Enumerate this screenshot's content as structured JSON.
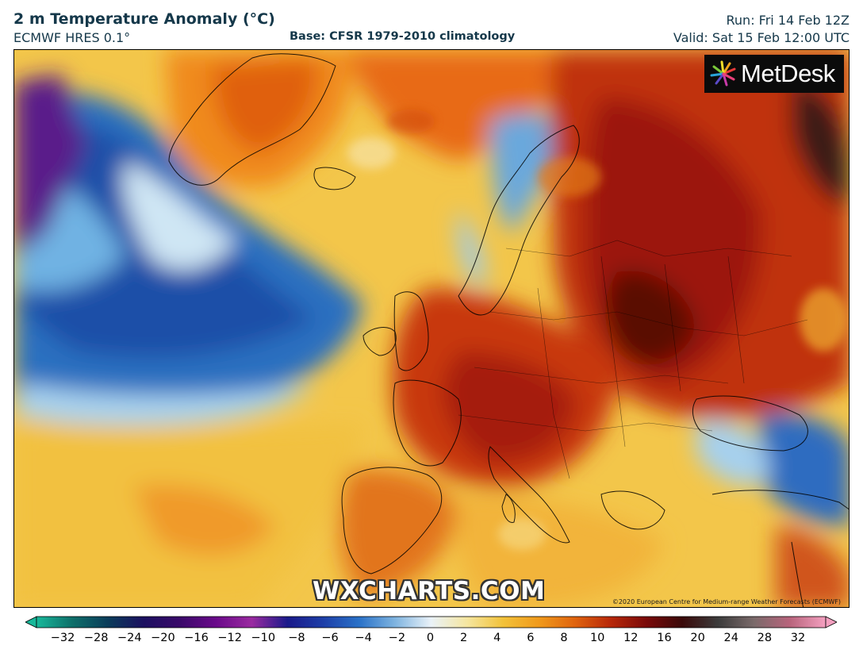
{
  "header": {
    "title": "2 m Temperature Anomaly (°C)",
    "model": "ECMWF HRES 0.1°",
    "base": "Base: CFSR 1979-2010 climatology",
    "run": "Run: Fri 14 Feb 12Z",
    "valid": "Valid: Sat 15 Feb 12:00 UTC"
  },
  "map": {
    "logo_text": "MetDesk",
    "watermark": "WXCHARTS.COM",
    "copyright": "©2020 European Centre for Medium-range Weather Forecasts (ECMWF)"
  },
  "colorbar": {
    "ticks": [
      "−32",
      "−28",
      "−24",
      "−20",
      "−16",
      "−12",
      "−10",
      "−8",
      "−6",
      "−4",
      "−2",
      "0",
      "2",
      "4",
      "6",
      "8",
      "10",
      "12",
      "16",
      "20",
      "24",
      "28",
      "32"
    ],
    "colors": [
      "#18b89a",
      "#0e6f6a",
      "#0b3c5a",
      "#1c1060",
      "#3a0a6a",
      "#6a0a8a",
      "#9a2aa0",
      "#1a1a8a",
      "#1e3fa8",
      "#2a72c8",
      "#7fb4e0",
      "#eaf2f8",
      "#f5e6a0",
      "#f2c23a",
      "#f09a1c",
      "#e0640e",
      "#b8280a",
      "#7a0a0a",
      "#3a0a0a",
      "#3c3c3c",
      "#7a6a6a",
      "#b8647c",
      "#f4a0c0"
    ]
  }
}
